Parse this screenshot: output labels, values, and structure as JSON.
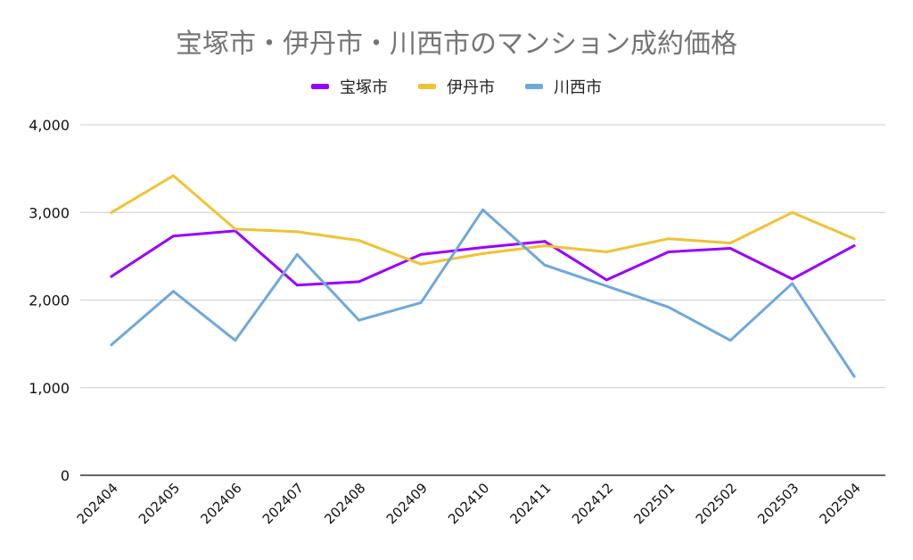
{
  "chart_data": {
    "type": "line",
    "title": "宝塚市・伊丹市・川西市のマンション成約価格",
    "categories": [
      "202404",
      "202405",
      "202406",
      "202407",
      "202408",
      "202409",
      "202410",
      "202411",
      "202412",
      "202501",
      "202502",
      "202503",
      "202504"
    ],
    "series": [
      {
        "name": "宝塚市",
        "color": "#9900ff",
        "values": [
          2270,
          2730,
          2790,
          2170,
          2210,
          2520,
          2600,
          2670,
          2230,
          2550,
          2590,
          2240,
          2620
        ]
      },
      {
        "name": "伊丹市",
        "color": "#f1c232",
        "values": [
          3000,
          3420,
          2810,
          2780,
          2680,
          2410,
          2530,
          2620,
          2550,
          2700,
          2650,
          3000,
          2700
        ]
      },
      {
        "name": "川西市",
        "color": "#6fa8dc",
        "values": [
          1490,
          2100,
          1540,
          2520,
          1770,
          1970,
          3030,
          2400,
          2160,
          1920,
          1540,
          2190,
          1130
        ]
      }
    ],
    "ylim": [
      0,
      4000
    ],
    "yticks": [
      "0",
      "1,000",
      "2,000",
      "3,000",
      "4,000"
    ],
    "ytick_values": [
      0,
      1000,
      2000,
      3000,
      4000
    ],
    "grid": true,
    "legend_position": "top"
  }
}
